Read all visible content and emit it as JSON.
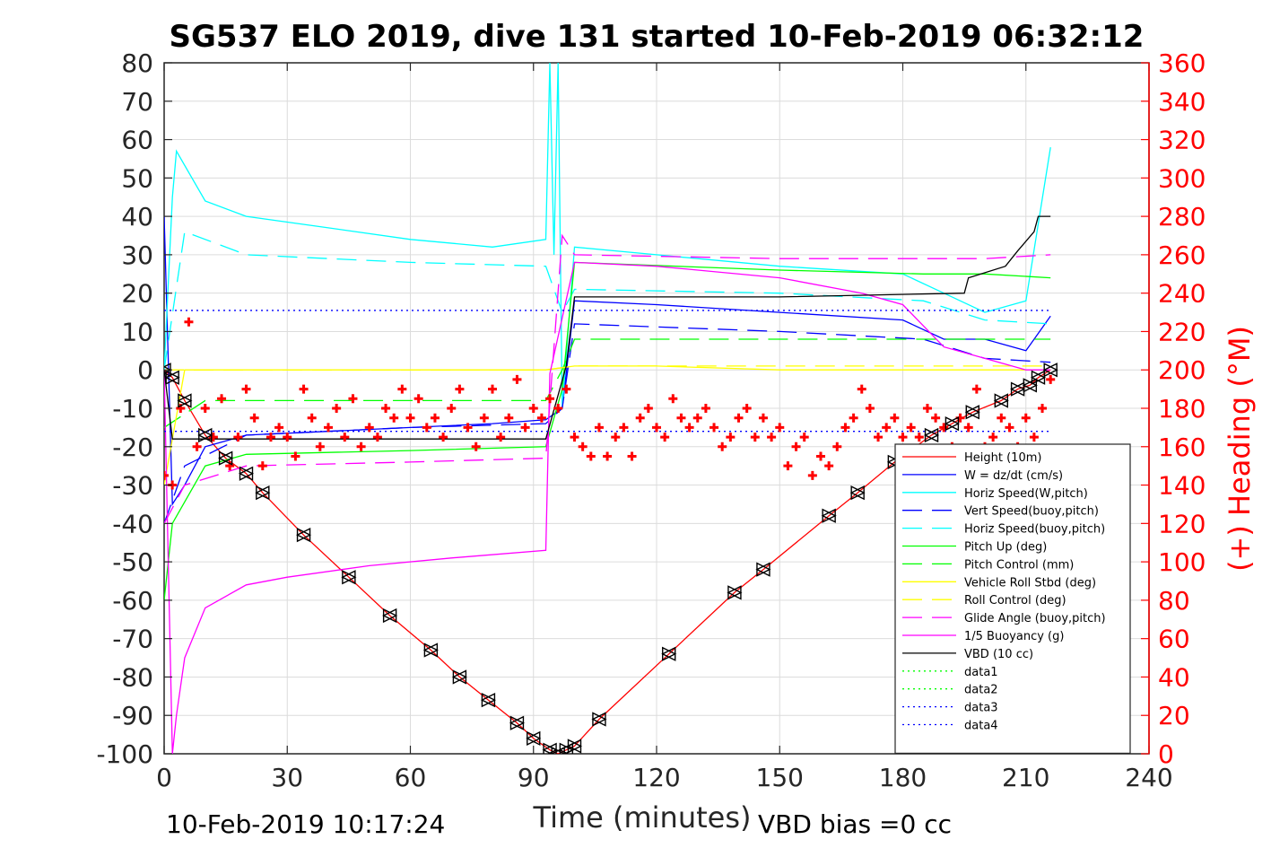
{
  "chart_data": {
    "type": "line",
    "title": "SG537 ELO 2019, dive 131 started 10-Feb-2019 06:32:12",
    "xlabel": "Time (minutes)",
    "ylabel": "",
    "y2label": "(+) Heading (°M)",
    "xlim": [
      0,
      240
    ],
    "ylim": [
      -100,
      80
    ],
    "y2lim": [
      0,
      360
    ],
    "xticks": [
      "0",
      "30",
      "60",
      "90",
      "120",
      "150",
      "180",
      "210",
      "240"
    ],
    "yticks": [
      "80",
      "70",
      "60",
      "50",
      "40",
      "30",
      "20",
      "10",
      "0",
      "-10",
      "-20",
      "-30",
      "-40",
      "-50",
      "-60",
      "-70",
      "-80",
      "-90",
      "-100"
    ],
    "y2ticks": [
      "360",
      "340",
      "320",
      "300",
      "280",
      "260",
      "240",
      "220",
      "200",
      "180",
      "160",
      "140",
      "120",
      "100",
      "80",
      "60",
      "40",
      "20",
      "0"
    ],
    "grid": true,
    "legend_position": "bottom-right",
    "footer_left": "10-Feb-2019 10:17:24",
    "footer_right": "VBD bias =0 cc",
    "colors": {
      "height": "#ff0000",
      "w": "#0000ff",
      "horiz_speed": "#00ffff",
      "pitch": "#00ff00",
      "roll": "#ffff00",
      "glide": "#ff00ff",
      "vbd": "#000000",
      "heading": "#ff0000"
    },
    "series": [
      {
        "name": "Height (10m)",
        "color": "#ff0000",
        "style": "solid",
        "marker": "triangle",
        "x": [
          0,
          2,
          5,
          10,
          15,
          20,
          24,
          34,
          45,
          55,
          65,
          72,
          79,
          86,
          90,
          94,
          96,
          98,
          100,
          106,
          123,
          139,
          146,
          162,
          169,
          178,
          187,
          192,
          197,
          204,
          208,
          211,
          213,
          216
        ],
        "y": [
          0,
          -2,
          -8,
          -17,
          -23,
          -27,
          -32,
          -43,
          -54,
          -64,
          -73,
          -80,
          -86,
          -92,
          -96,
          -99,
          -100,
          -99,
          -98,
          -91,
          -74,
          -58,
          -52,
          -38,
          -32,
          -24,
          -17,
          -14,
          -11,
          -8,
          -5,
          -4,
          -2,
          0
        ]
      },
      {
        "name": "W = dz/dt (cm/s)",
        "color": "#0000ff",
        "style": "solid",
        "x": [
          0,
          2,
          5,
          10,
          20,
          40,
          60,
          80,
          93,
          97,
          100,
          120,
          150,
          180,
          190,
          200,
          210,
          216
        ],
        "y": [
          40,
          -35,
          -30,
          -20,
          -17,
          -16,
          -15,
          -14,
          -13,
          -10,
          18,
          17,
          15,
          13,
          8,
          8,
          5,
          14
        ]
      },
      {
        "name": "Horiz Speed(W,pitch)",
        "color": "#00ffff",
        "style": "solid",
        "x": [
          0,
          2,
          3,
          10,
          20,
          40,
          60,
          80,
          93,
          94,
          95,
          96,
          97,
          100,
          120,
          150,
          180,
          190,
          200,
          210,
          216
        ],
        "y": [
          0,
          45,
          57,
          44,
          40,
          37,
          34,
          32,
          34,
          80,
          30,
          80,
          -10,
          32,
          30,
          27,
          25,
          20,
          15,
          18,
          58
        ]
      },
      {
        "name": "Vert Speed(buoy,pitch)",
        "color": "#0000ff",
        "style": "dashed",
        "x": [
          0,
          5,
          20,
          60,
          93,
          97,
          100,
          150,
          185,
          200,
          216
        ],
        "y": [
          -40,
          -25,
          -17,
          -15,
          -14,
          -10,
          12,
          10,
          8,
          3,
          2
        ]
      },
      {
        "name": "Horiz Speed(buoy,pitch)",
        "color": "#00ffff",
        "style": "dashed",
        "x": [
          0,
          5,
          20,
          60,
          93,
          97,
          100,
          150,
          185,
          200,
          216
        ],
        "y": [
          0,
          36,
          30,
          28,
          27,
          15,
          21,
          20,
          18,
          13,
          12
        ]
      },
      {
        "name": "Pitch Up (deg)",
        "color": "#00ff00",
        "style": "solid",
        "x": [
          0,
          2,
          10,
          20,
          60,
          93,
          97,
          100,
          150,
          185,
          200,
          216
        ],
        "y": [
          -60,
          -40,
          -25,
          -22,
          -21,
          -20,
          -5,
          28,
          26,
          25,
          25,
          24
        ]
      },
      {
        "name": "Pitch Control (mm)",
        "color": "#00ff00",
        "style": "dashed",
        "x": [
          0,
          10,
          60,
          93,
          97,
          100,
          150,
          185,
          216
        ],
        "y": [
          -15,
          -8,
          -8,
          -8,
          0,
          8,
          8,
          8,
          8
        ]
      },
      {
        "name": "Vehicle Roll Stbd (deg)",
        "color": "#ffff00",
        "style": "solid",
        "x": [
          0,
          5,
          10,
          30,
          60,
          90,
          93,
          100,
          120,
          150,
          180,
          200,
          216
        ],
        "y": [
          -30,
          0,
          0,
          0,
          0,
          0,
          0,
          1,
          1,
          0,
          0,
          0,
          0
        ]
      },
      {
        "name": "Roll Control (deg)",
        "color": "#ffff00",
        "style": "dashed",
        "x": [
          0,
          10,
          60,
          93,
          100,
          150,
          200,
          216
        ],
        "y": [
          0,
          0,
          0,
          0,
          1,
          1,
          1,
          1
        ]
      },
      {
        "name": "Glide Angle (buoy,pitch)",
        "color": "#ff00ff",
        "style": "dashed",
        "x": [
          0,
          5,
          20,
          60,
          93,
          97,
          100,
          150,
          185,
          200,
          216
        ],
        "y": [
          -40,
          -30,
          -25,
          -24,
          -23,
          35,
          30,
          29,
          29,
          29,
          30
        ]
      },
      {
        "name": "1/5 Buoyancy (g)",
        "color": "#ff00ff",
        "style": "solid",
        "x": [
          0,
          2,
          3,
          5,
          10,
          20,
          30,
          50,
          70,
          93,
          94,
          100,
          120,
          150,
          170,
          180,
          190,
          200,
          210,
          216
        ],
        "y": [
          0,
          -100,
          -90,
          -75,
          -62,
          -56,
          -54,
          -51,
          -49,
          -47,
          -1,
          28,
          27,
          24,
          20,
          17,
          6,
          3,
          0,
          0
        ]
      },
      {
        "name": "VBD (10 cc)",
        "color": "#000000",
        "style": "solid",
        "x": [
          0,
          2,
          5,
          20,
          93,
          98,
          100,
          120,
          150,
          195,
          196,
          205,
          208,
          212,
          213,
          216
        ],
        "y": [
          0,
          -18,
          -18,
          -18,
          -18,
          1,
          19,
          19,
          19,
          20,
          24,
          27,
          31,
          36,
          40,
          40
        ]
      },
      {
        "name": "data1",
        "color": "#00ff00",
        "style": "dotted",
        "x": [],
        "y": []
      },
      {
        "name": "data2",
        "color": "#00ff00",
        "style": "dotted",
        "x": [],
        "y": []
      },
      {
        "name": "data3",
        "color": "#0000ff",
        "style": "dotted",
        "x": [
          0,
          216
        ],
        "y": [
          15.5,
          15.5
        ]
      },
      {
        "name": "data4",
        "color": "#0000ff",
        "style": "dotted",
        "x": [
          0,
          216
        ],
        "y": [
          -16,
          -16
        ]
      }
    ],
    "heading_series": {
      "marker": "+",
      "color": "#ff0000",
      "axis": "right",
      "x": [
        0,
        2,
        4,
        6,
        8,
        10,
        12,
        14,
        16,
        18,
        20,
        22,
        24,
        26,
        28,
        30,
        32,
        34,
        36,
        38,
        40,
        42,
        44,
        46,
        48,
        50,
        52,
        54,
        56,
        58,
        60,
        62,
        64,
        66,
        68,
        70,
        72,
        74,
        76,
        78,
        80,
        82,
        84,
        86,
        88,
        90,
        92,
        94,
        96,
        98,
        100,
        102,
        104,
        106,
        108,
        110,
        112,
        114,
        116,
        118,
        120,
        122,
        124,
        126,
        128,
        130,
        132,
        134,
        136,
        138,
        140,
        142,
        144,
        146,
        148,
        150,
        152,
        154,
        156,
        158,
        160,
        162,
        164,
        166,
        168,
        170,
        172,
        174,
        176,
        178,
        180,
        182,
        184,
        186,
        188,
        190,
        192,
        194,
        196,
        198,
        200,
        202,
        204,
        206,
        208,
        210,
        212,
        214,
        216
      ],
      "y": [
        145,
        140,
        180,
        225,
        160,
        180,
        165,
        185,
        150,
        165,
        190,
        175,
        150,
        165,
        170,
        165,
        155,
        190,
        175,
        160,
        170,
        180,
        165,
        185,
        160,
        170,
        165,
        180,
        175,
        190,
        175,
        185,
        170,
        175,
        165,
        180,
        190,
        170,
        160,
        175,
        190,
        165,
        175,
        195,
        170,
        180,
        175,
        185,
        180,
        190,
        165,
        160,
        155,
        170,
        155,
        165,
        170,
        155,
        175,
        180,
        170,
        165,
        185,
        175,
        170,
        175,
        180,
        170,
        160,
        165,
        175,
        180,
        165,
        175,
        165,
        170,
        150,
        160,
        165,
        145,
        155,
        150,
        160,
        170,
        175,
        190,
        180,
        165,
        170,
        175,
        165,
        170,
        165,
        180,
        175,
        170,
        160,
        175,
        170,
        190,
        160,
        165,
        175,
        170,
        160,
        175,
        165,
        180,
        195
      ]
    }
  }
}
